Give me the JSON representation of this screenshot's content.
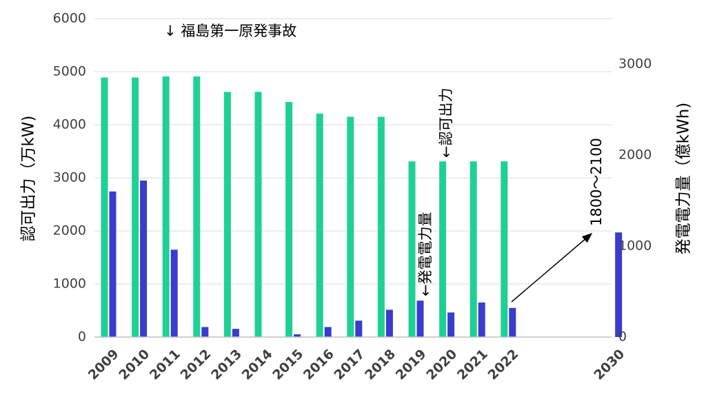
{
  "chart_data": {
    "type": "bar",
    "categories": [
      "2009",
      "2010",
      "2011",
      "2012",
      "2013",
      "2014",
      "2015",
      "2016",
      "2017",
      "2018",
      "2019",
      "2020",
      "2021",
      "2022",
      "2030"
    ],
    "series": [
      {
        "name": "認可出力",
        "axis": "left",
        "color": "#1fd094",
        "values": [
          4890,
          4890,
          4910,
          4910,
          4620,
          4620,
          4430,
          4210,
          4150,
          4150,
          3310,
          3310,
          3310,
          3310,
          null
        ]
      },
      {
        "name": "発電電力量",
        "axis": "right",
        "color": "#3a3ccc",
        "values": [
          1600,
          1720,
          960,
          110,
          90,
          0,
          30,
          110,
          180,
          300,
          400,
          270,
          380,
          320,
          1150
        ]
      }
    ],
    "ylabel": "認可出力（万kW)",
    "ylim": [
      0,
      6000
    ],
    "yticks": [
      0,
      1000,
      2000,
      3000,
      4000,
      5000,
      6000
    ],
    "y2label": "発電電力量（億kWh)",
    "y2lim": [
      0,
      3500
    ],
    "y2ticks": [
      0,
      1000,
      2000,
      3000
    ],
    "grid": true,
    "annotations": {
      "fukushima": "↓ 福島第一原発事故",
      "capacity": "←認可出力",
      "generation": "←発電電力量",
      "target_2030": "1800～2100"
    }
  }
}
